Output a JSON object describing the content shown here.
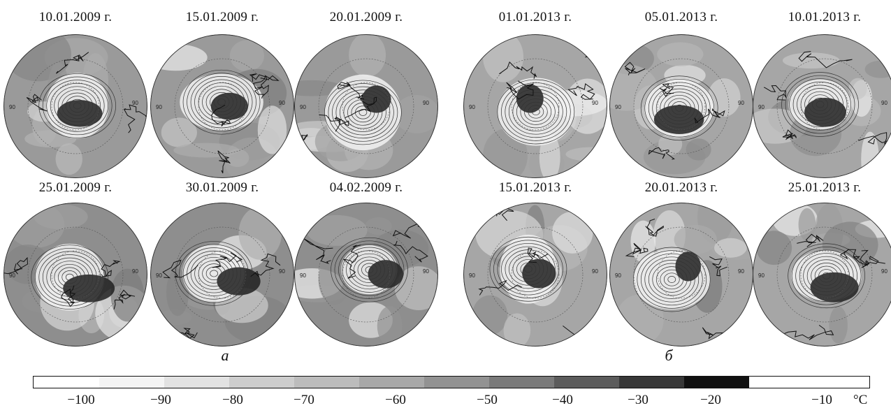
{
  "panels": [
    {
      "label": "а",
      "dates": [
        "10.01.2009 г.",
        "15.01.2009 г.",
        "20.01.2009 г.",
        "25.01.2009 г.",
        "30.01.2009 г.",
        "04.02.2009 г."
      ]
    },
    {
      "label": "б",
      "dates": [
        "01.01.2013 г.",
        "05.01.2013 г.",
        "10.01.2013 г.",
        "15.01.2013 г.",
        "20.01.2013 г.",
        "25.01.2013 г."
      ]
    }
  ],
  "map_meridian_label": "90",
  "colorbar": {
    "ticks": [
      "−100",
      "−90",
      "−80",
      "−70",
      "−60",
      "−50",
      "−40",
      "−30",
      "−20",
      "−10"
    ],
    "unit": "°C",
    "colors": [
      "#ffffff",
      "#ffffff",
      "#f4f4f4",
      "#e2e2e2",
      "#cdcdcd",
      "#bcbcbc",
      "#a8a8a8",
      "#929292",
      "#7a7a7a",
      "#5c5c5c",
      "#383838",
      "#111111"
    ]
  }
}
